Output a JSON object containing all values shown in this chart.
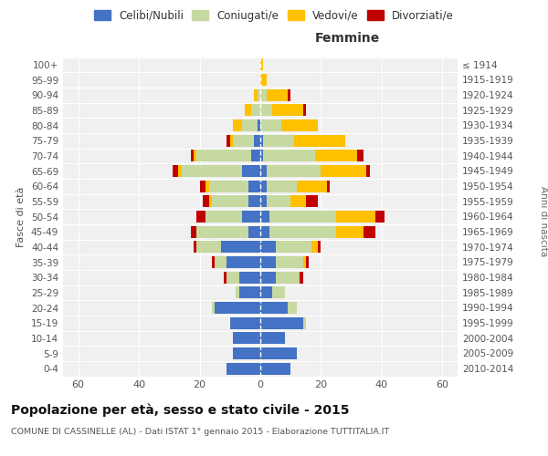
{
  "age_groups": [
    "0-4",
    "5-9",
    "10-14",
    "15-19",
    "20-24",
    "25-29",
    "30-34",
    "35-39",
    "40-44",
    "45-49",
    "50-54",
    "55-59",
    "60-64",
    "65-69",
    "70-74",
    "75-79",
    "80-84",
    "85-89",
    "90-94",
    "95-99",
    "100+"
  ],
  "birth_years": [
    "2010-2014",
    "2005-2009",
    "2000-2004",
    "1995-1999",
    "1990-1994",
    "1985-1989",
    "1980-1984",
    "1975-1979",
    "1970-1974",
    "1965-1969",
    "1960-1964",
    "1955-1959",
    "1950-1954",
    "1945-1949",
    "1940-1944",
    "1935-1939",
    "1930-1934",
    "1925-1929",
    "1920-1924",
    "1915-1919",
    "≤ 1914"
  ],
  "maschi": {
    "celibi": [
      11,
      9,
      9,
      10,
      15,
      7,
      7,
      11,
      13,
      4,
      6,
      4,
      4,
      6,
      3,
      2,
      1,
      0,
      0,
      0,
      0
    ],
    "coniugati": [
      0,
      0,
      0,
      0,
      1,
      1,
      4,
      4,
      8,
      17,
      12,
      12,
      13,
      20,
      18,
      7,
      5,
      3,
      1,
      0,
      0
    ],
    "vedovi": [
      0,
      0,
      0,
      0,
      0,
      0,
      0,
      0,
      0,
      0,
      0,
      1,
      1,
      1,
      1,
      1,
      3,
      2,
      1,
      0,
      0
    ],
    "divorziati": [
      0,
      0,
      0,
      0,
      0,
      0,
      1,
      1,
      1,
      2,
      3,
      2,
      2,
      2,
      1,
      1,
      0,
      0,
      0,
      0,
      0
    ]
  },
  "femmine": {
    "nubili": [
      10,
      12,
      8,
      14,
      9,
      4,
      5,
      5,
      5,
      3,
      3,
      2,
      2,
      2,
      1,
      1,
      0,
      0,
      0,
      0,
      0
    ],
    "coniugate": [
      0,
      0,
      0,
      1,
      3,
      4,
      8,
      9,
      12,
      22,
      22,
      8,
      10,
      18,
      17,
      10,
      7,
      4,
      2,
      0,
      0
    ],
    "vedove": [
      0,
      0,
      0,
      0,
      0,
      0,
      0,
      1,
      2,
      9,
      13,
      5,
      10,
      15,
      14,
      17,
      12,
      10,
      7,
      2,
      1
    ],
    "divorziate": [
      0,
      0,
      0,
      0,
      0,
      0,
      1,
      1,
      1,
      4,
      3,
      4,
      1,
      1,
      2,
      0,
      0,
      1,
      1,
      0,
      0
    ]
  },
  "color_celibi": "#4472c4",
  "color_coniugati": "#c5d9a0",
  "color_vedovi": "#ffc000",
  "color_divorziati": "#c00000",
  "bg_color": "#f0f0f0",
  "grid_color": "#d0d0d0",
  "xlim": 65,
  "title": "Popolazione per età, sesso e stato civile - 2015",
  "subtitle": "COMUNE DI CASSINELLE (AL) - Dati ISTAT 1° gennaio 2015 - Elaborazione TUTTITALIA.IT"
}
